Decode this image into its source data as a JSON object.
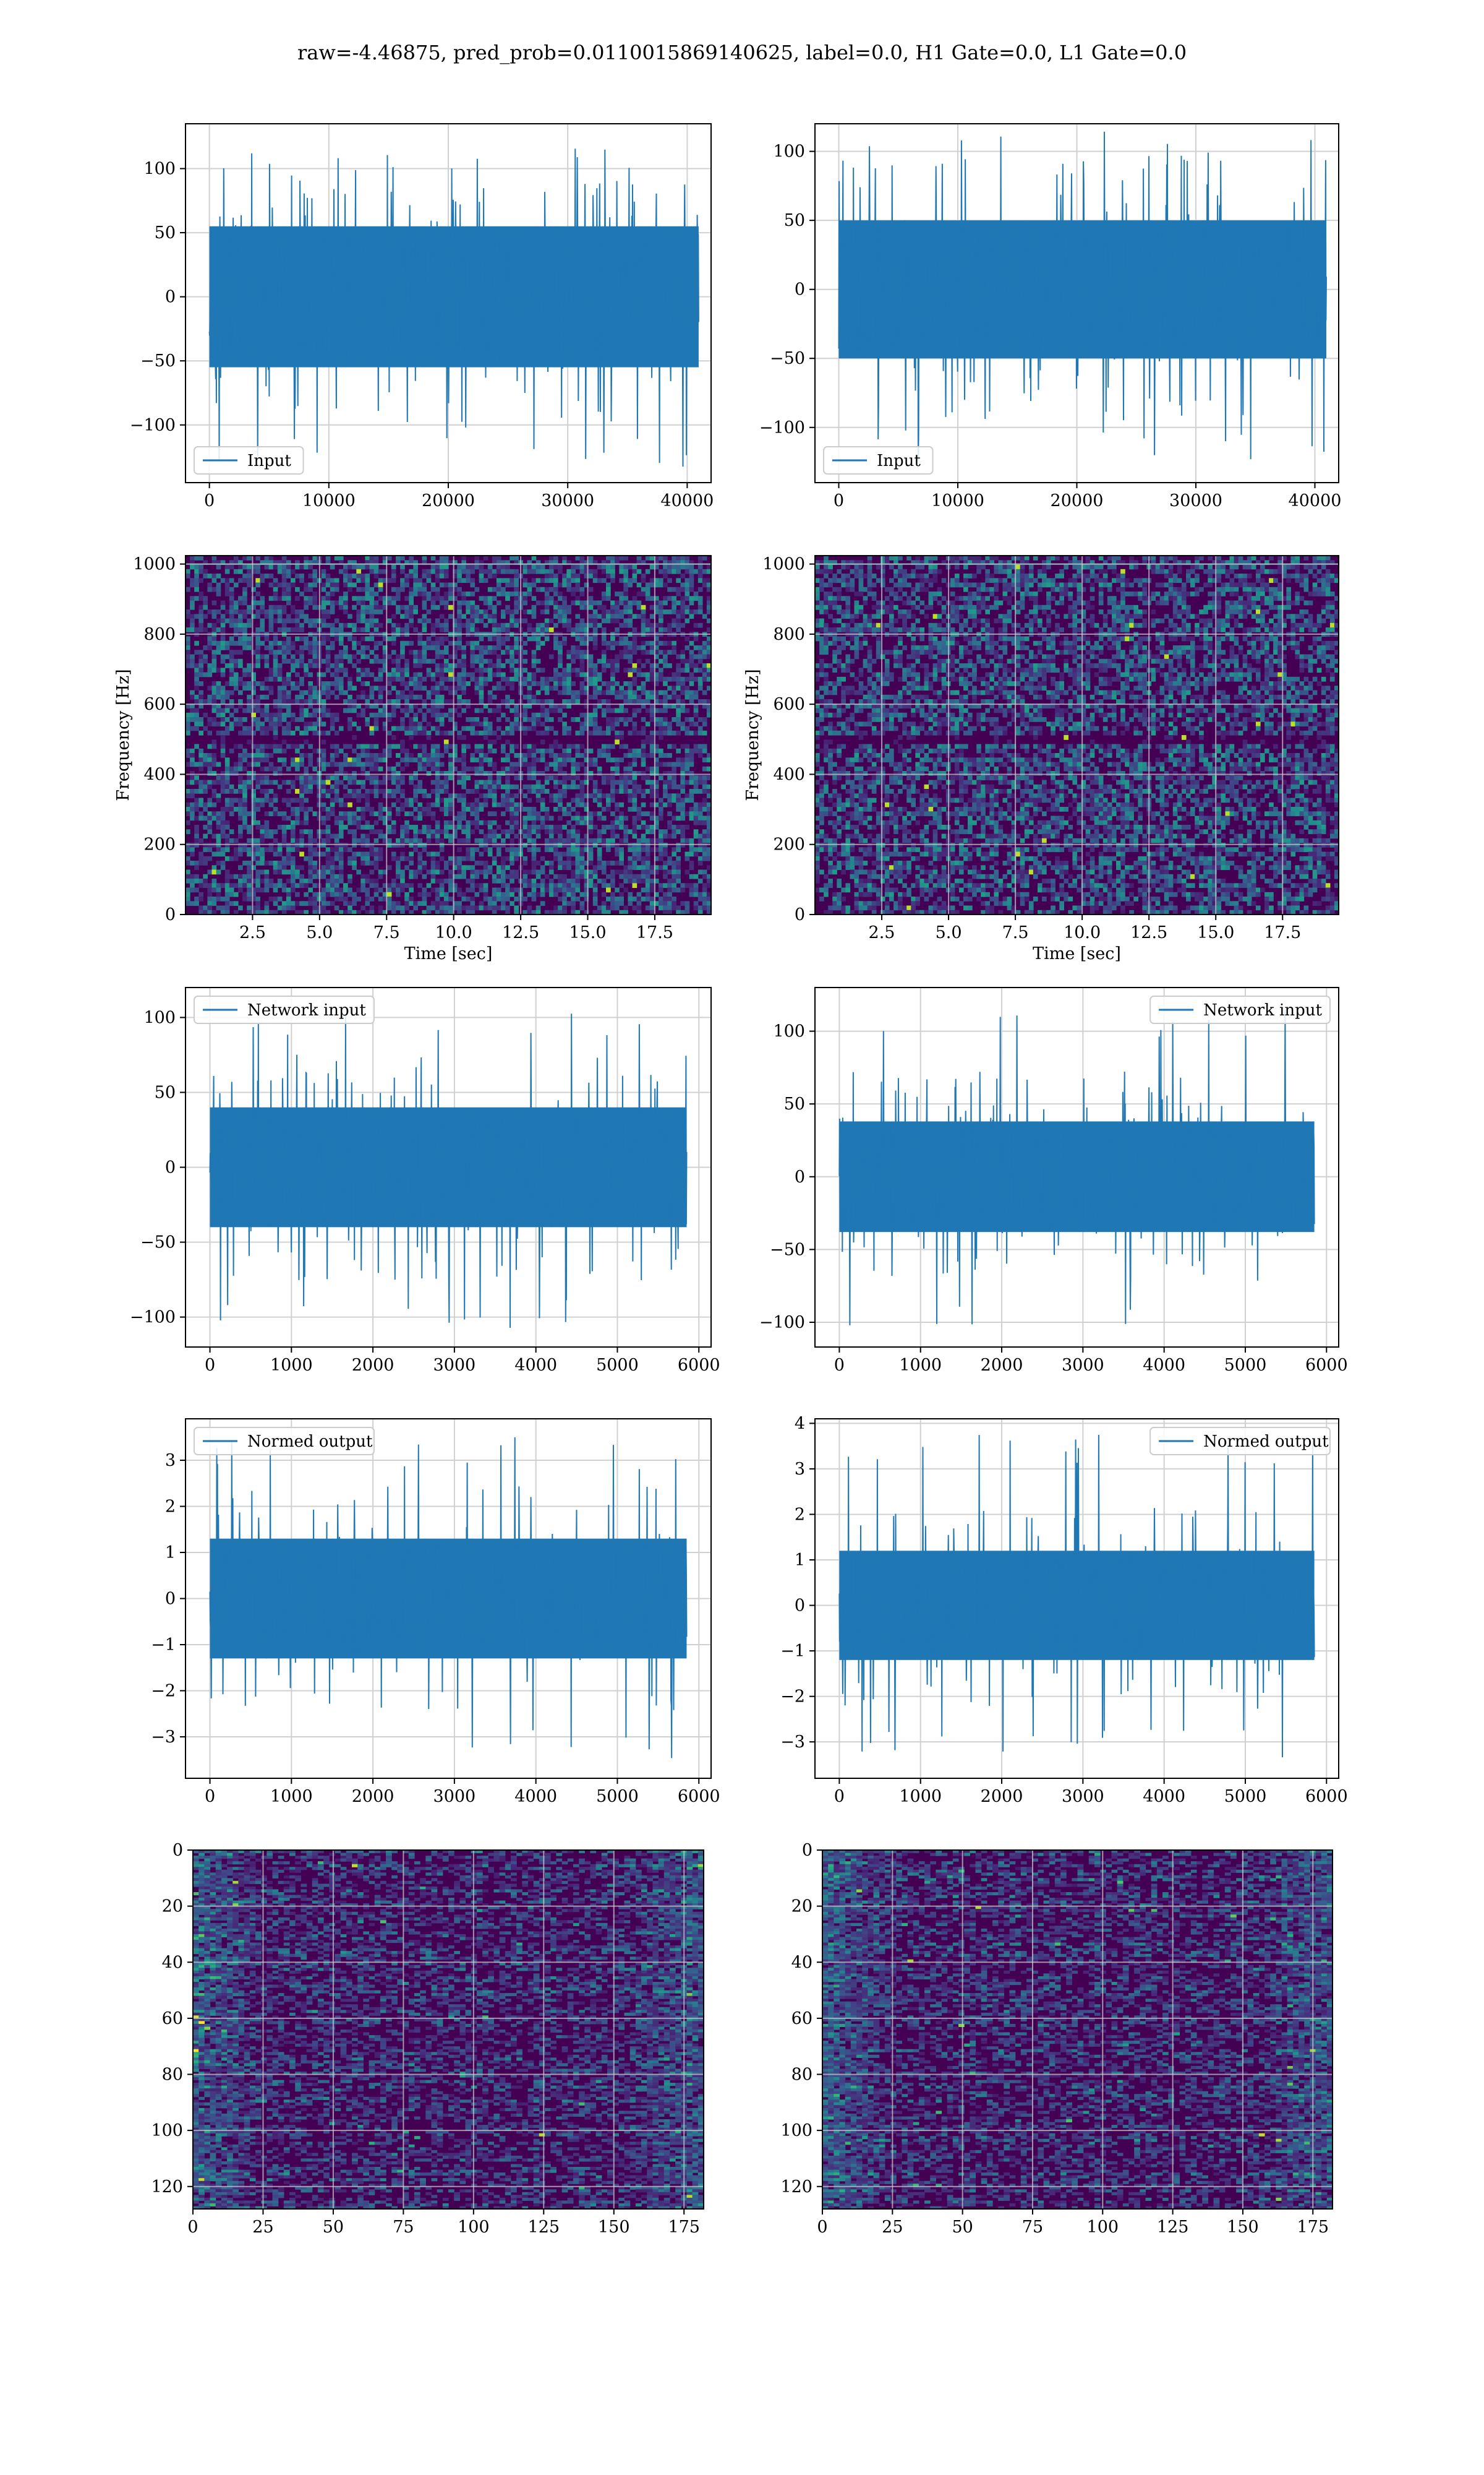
{
  "title": "raw=-4.46875, pred_prob=0.0110015869140625, label=0.0, H1 Gate=0.0, L1 Gate=0.0",
  "colors": {
    "line": "#1f77b4",
    "grid": "#d0d0d0",
    "heat_low": "#440154",
    "heat_mid": "#21918c",
    "heat_high": "#fde725"
  },
  "chart_data": [
    {
      "type": "line",
      "id": "h1-input",
      "series": [
        {
          "name": "Input"
        }
      ],
      "legend": "lower-left",
      "xlim": [
        -2000,
        42000
      ],
      "ylim": [
        -145,
        135
      ],
      "xticks": [
        0,
        10000,
        20000,
        30000,
        40000
      ],
      "xticklabels": [
        "0",
        "10000",
        "20000",
        "30000",
        "40000"
      ],
      "yticks": [
        -100,
        -50,
        0,
        50,
        100
      ],
      "yticklabels": [
        "−100",
        "−50",
        "0",
        "50",
        "100"
      ],
      "samples_x_max": 40960,
      "envelope_abs": 55,
      "spike_max": 120,
      "spike_min": -135,
      "xlabel": "",
      "ylabel": ""
    },
    {
      "type": "line",
      "id": "l1-input",
      "series": [
        {
          "name": "Input"
        }
      ],
      "legend": "lower-left",
      "xlim": [
        -2000,
        42000
      ],
      "ylim": [
        -140,
        120
      ],
      "xticks": [
        0,
        10000,
        20000,
        30000,
        40000
      ],
      "xticklabels": [
        "0",
        "10000",
        "20000",
        "30000",
        "40000"
      ],
      "yticks": [
        -100,
        -50,
        0,
        50,
        100
      ],
      "yticklabels": [
        "−100",
        "−50",
        "0",
        "50",
        "100"
      ],
      "samples_x_max": 40960,
      "envelope_abs": 50,
      "spike_max": 115,
      "spike_min": -125,
      "xlabel": "",
      "ylabel": ""
    },
    {
      "type": "heatmap",
      "id": "h1-spectrogram",
      "xlabel": "Time [sec]",
      "ylabel": "Frequency [Hz]",
      "xlim": [
        0,
        19.6
      ],
      "ylim": [
        0,
        1024
      ],
      "xticks": [
        2.5,
        5.0,
        7.5,
        10.0,
        12.5,
        15.0,
        17.5
      ],
      "xticklabels": [
        "2.5",
        "5.0",
        "7.5",
        "10.0",
        "12.5",
        "15.0",
        "17.5"
      ],
      "yticks": [
        0,
        200,
        400,
        600,
        800,
        1000
      ],
      "yticklabels": [
        "0",
        "200",
        "400",
        "600",
        "800",
        "1000"
      ],
      "dark_band_hz": 500,
      "top_line_hz": 1000
    },
    {
      "type": "heatmap",
      "id": "l1-spectrogram",
      "xlabel": "Time [sec]",
      "ylabel": "Frequency [Hz]",
      "xlim": [
        0,
        19.6
      ],
      "ylim": [
        0,
        1024
      ],
      "xticks": [
        2.5,
        5.0,
        7.5,
        10.0,
        12.5,
        15.0,
        17.5
      ],
      "xticklabels": [
        "2.5",
        "5.0",
        "7.5",
        "10.0",
        "12.5",
        "15.0",
        "17.5"
      ],
      "yticks": [
        0,
        200,
        400,
        600,
        800,
        1000
      ],
      "yticklabels": [
        "0",
        "200",
        "400",
        "600",
        "800",
        "1000"
      ],
      "dark_band_hz": 500,
      "top_line_hz": 1000
    },
    {
      "type": "line",
      "id": "h1-network-input",
      "series": [
        {
          "name": "Network input"
        }
      ],
      "legend": "upper-left",
      "xlim": [
        -300,
        6150
      ],
      "ylim": [
        -120,
        120
      ],
      "xticks": [
        0,
        1000,
        2000,
        3000,
        4000,
        5000,
        6000
      ],
      "xticklabels": [
        "0",
        "1000",
        "2000",
        "3000",
        "4000",
        "5000",
        "6000"
      ],
      "yticks": [
        -100,
        -50,
        0,
        50,
        100
      ],
      "yticklabels": [
        "−100",
        "−50",
        "0",
        "50",
        "100"
      ],
      "samples_x_max": 5850,
      "envelope_abs": 40,
      "spike_max": 110,
      "spike_min": -110,
      "xlabel": "",
      "ylabel": ""
    },
    {
      "type": "line",
      "id": "l1-network-input",
      "series": [
        {
          "name": "Network input"
        }
      ],
      "legend": "upper-right",
      "xlim": [
        -300,
        6150
      ],
      "ylim": [
        -117,
        130
      ],
      "xticks": [
        0,
        1000,
        2000,
        3000,
        4000,
        5000,
        6000
      ],
      "xticklabels": [
        "0",
        "1000",
        "2000",
        "3000",
        "4000",
        "5000",
        "6000"
      ],
      "yticks": [
        -100,
        -50,
        0,
        50,
        100
      ],
      "yticklabels": [
        "−100",
        "−50",
        "0",
        "50",
        "100"
      ],
      "samples_x_max": 5850,
      "envelope_abs": 38,
      "spike_max": 118,
      "spike_min": -105,
      "xlabel": "",
      "ylabel": ""
    },
    {
      "type": "line",
      "id": "h1-normed-output",
      "series": [
        {
          "name": "Normed output"
        }
      ],
      "legend": "upper-left",
      "xlim": [
        -300,
        6150
      ],
      "ylim": [
        -3.9,
        3.9
      ],
      "xticks": [
        0,
        1000,
        2000,
        3000,
        4000,
        5000,
        6000
      ],
      "xticklabels": [
        "0",
        "1000",
        "2000",
        "3000",
        "4000",
        "5000",
        "6000"
      ],
      "yticks": [
        -3,
        -2,
        -1,
        0,
        1,
        2,
        3
      ],
      "yticklabels": [
        "−3",
        "−2",
        "−1",
        "0",
        "1",
        "2",
        "3"
      ],
      "samples_x_max": 5850,
      "envelope_abs": 1.3,
      "spike_max": 3.5,
      "spike_min": -3.5,
      "xlabel": "",
      "ylabel": ""
    },
    {
      "type": "line",
      "id": "l1-normed-output",
      "series": [
        {
          "name": "Normed output"
        }
      ],
      "legend": "upper-right",
      "xlim": [
        -300,
        6150
      ],
      "ylim": [
        -3.8,
        4.1
      ],
      "xticks": [
        0,
        1000,
        2000,
        3000,
        4000,
        5000,
        6000
      ],
      "xticklabels": [
        "0",
        "1000",
        "2000",
        "3000",
        "4000",
        "5000",
        "6000"
      ],
      "yticks": [
        -3,
        -2,
        -1,
        0,
        1,
        2,
        3,
        4
      ],
      "yticklabels": [
        "−3",
        "−2",
        "−1",
        "0",
        "1",
        "2",
        "3",
        "4"
      ],
      "samples_x_max": 5850,
      "envelope_abs": 1.2,
      "spike_max": 3.75,
      "spike_min": -3.4,
      "xlabel": "",
      "ylabel": ""
    },
    {
      "type": "heatmap",
      "id": "h1-feature-map",
      "xlim": [
        0,
        182
      ],
      "ylim": [
        128,
        0
      ],
      "xticks": [
        0,
        25,
        50,
        75,
        100,
        125,
        150,
        175
      ],
      "xticklabels": [
        "0",
        "25",
        "50",
        "75",
        "100",
        "125",
        "150",
        "175"
      ],
      "yticks": [
        0,
        20,
        40,
        60,
        80,
        100,
        120
      ],
      "yticklabels": [
        "0",
        "20",
        "40",
        "60",
        "80",
        "100",
        "120"
      ],
      "xlabel": "",
      "ylabel": ""
    },
    {
      "type": "heatmap",
      "id": "l1-feature-map",
      "xlim": [
        0,
        182
      ],
      "ylim": [
        128,
        0
      ],
      "xticks": [
        0,
        25,
        50,
        75,
        100,
        125,
        150,
        175
      ],
      "xticklabels": [
        "0",
        "25",
        "50",
        "75",
        "100",
        "125",
        "150",
        "175"
      ],
      "yticks": [
        0,
        20,
        40,
        60,
        80,
        100,
        120
      ],
      "yticklabels": [
        "0",
        "20",
        "40",
        "60",
        "80",
        "100",
        "120"
      ],
      "xlabel": "",
      "ylabel": ""
    }
  ]
}
